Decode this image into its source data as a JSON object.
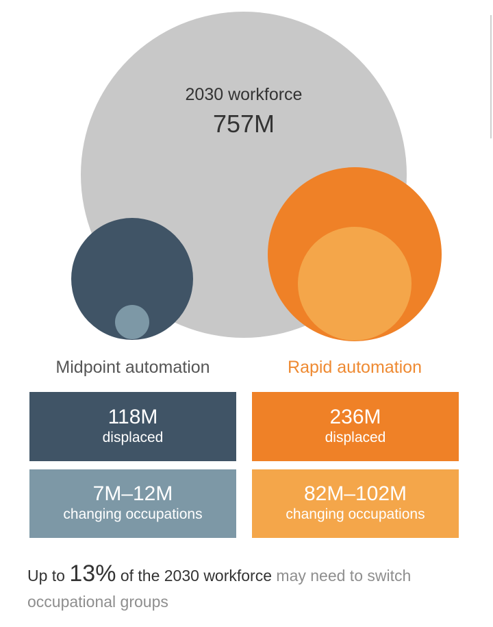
{
  "colors": {
    "workforce": "#c8c8c8",
    "midpoint_dark": "#405466",
    "midpoint_light": "#7d98a6",
    "rapid_dark": "#ef8127",
    "rapid_light": "#f4a64a",
    "midpoint_label": "#555555",
    "rapid_label": "#ee8a32"
  },
  "workforce": {
    "label": "2030 workforce",
    "value": "757M",
    "value_m": 757
  },
  "midpoint": {
    "label": "Midpoint automation",
    "displaced_value": "118M",
    "displaced_label": "displaced",
    "changing_value": "7M–12M",
    "changing_label": "changing occupations"
  },
  "rapid": {
    "label": "Rapid automation",
    "displaced_value": "236M",
    "displaced_label": "displaced",
    "changing_value": "82M–102M",
    "changing_label": "changing occupations"
  },
  "footer": {
    "part1": "Up to ",
    "pct": "13%",
    "part2": " of the 2030 workforce",
    "part3": " may need to switch occupational groups"
  }
}
